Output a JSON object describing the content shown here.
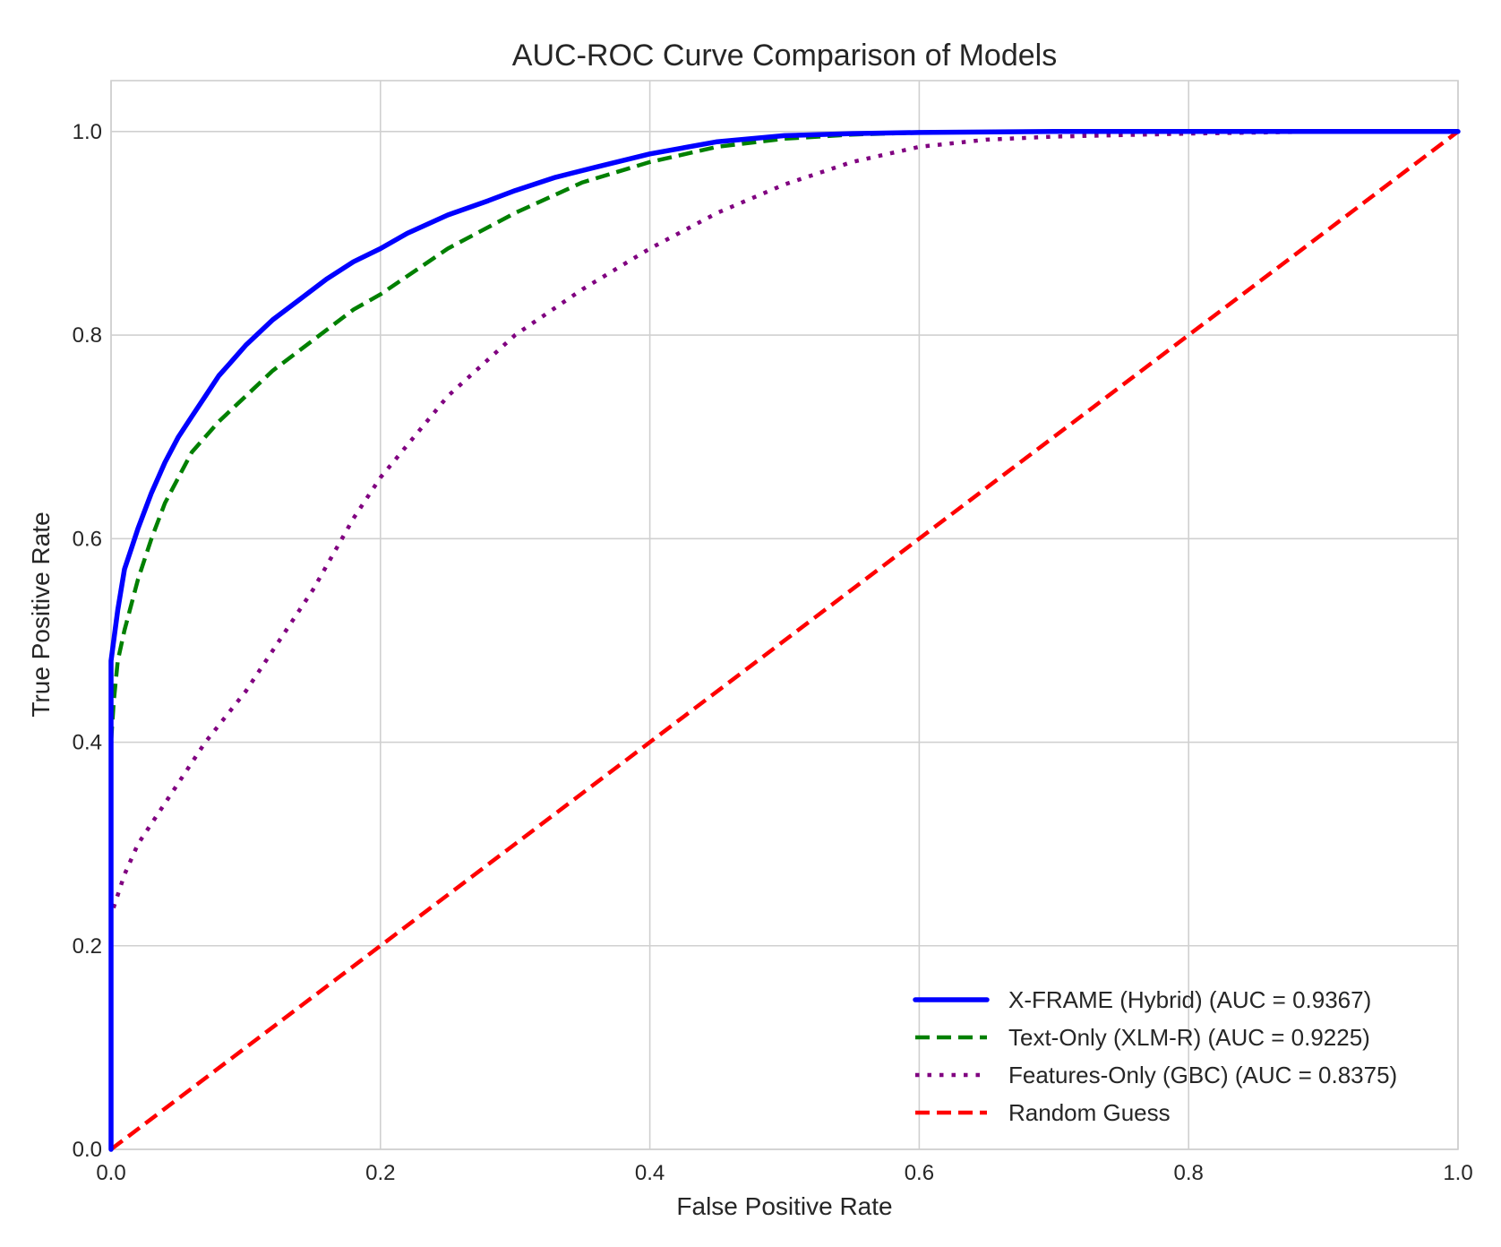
{
  "chart_data": {
    "type": "line",
    "title": "AUC-ROC Curve Comparison of Models",
    "xlabel": "False Positive Rate",
    "ylabel": "True Positive Rate",
    "xlim": [
      0.0,
      1.0
    ],
    "ylim": [
      0.0,
      1.05
    ],
    "x_ticks": [
      "0.0",
      "0.2",
      "0.4",
      "0.6",
      "0.8",
      "1.0"
    ],
    "y_ticks": [
      "0.0",
      "0.2",
      "0.4",
      "0.6",
      "0.8",
      "1.0"
    ],
    "grid": true,
    "legend_position": "lower-right",
    "series": [
      {
        "name": "X-FRAME (Hybrid) (AUC = 0.9367)",
        "color": "#0000ff",
        "style": "solid",
        "x": [
          0.0,
          0.0,
          0.002,
          0.005,
          0.01,
          0.015,
          0.02,
          0.03,
          0.04,
          0.05,
          0.06,
          0.07,
          0.08,
          0.09,
          0.1,
          0.12,
          0.14,
          0.16,
          0.18,
          0.2,
          0.22,
          0.25,
          0.28,
          0.3,
          0.33,
          0.36,
          0.4,
          0.45,
          0.5,
          0.55,
          0.6,
          0.7,
          0.8,
          0.9,
          1.0
        ],
        "y": [
          0.0,
          0.48,
          0.5,
          0.53,
          0.57,
          0.59,
          0.61,
          0.645,
          0.675,
          0.7,
          0.72,
          0.74,
          0.76,
          0.775,
          0.79,
          0.815,
          0.835,
          0.855,
          0.872,
          0.885,
          0.9,
          0.918,
          0.932,
          0.942,
          0.955,
          0.965,
          0.978,
          0.99,
          0.996,
          0.998,
          0.999,
          1.0,
          1.0,
          1.0,
          1.0
        ]
      },
      {
        "name": "Text-Only (XLM-R) (AUC = 0.9225)",
        "color": "#008000",
        "style": "dashed",
        "x": [
          0.0,
          0.0,
          0.002,
          0.005,
          0.01,
          0.02,
          0.03,
          0.04,
          0.05,
          0.06,
          0.08,
          0.1,
          0.12,
          0.15,
          0.18,
          0.2,
          0.25,
          0.3,
          0.35,
          0.4,
          0.45,
          0.5,
          0.55,
          0.6,
          0.7,
          0.8,
          0.9,
          1.0
        ],
        "y": [
          0.0,
          0.4,
          0.44,
          0.48,
          0.51,
          0.56,
          0.6,
          0.635,
          0.66,
          0.685,
          0.715,
          0.74,
          0.765,
          0.795,
          0.825,
          0.84,
          0.885,
          0.92,
          0.95,
          0.97,
          0.985,
          0.993,
          0.997,
          0.999,
          1.0,
          1.0,
          1.0,
          1.0
        ]
      },
      {
        "name": "Features-Only (GBC) (AUC = 0.8375)",
        "color": "#800080",
        "style": "dotted",
        "x": [
          0.0,
          0.0,
          0.005,
          0.01,
          0.02,
          0.03,
          0.05,
          0.07,
          0.1,
          0.12,
          0.15,
          0.18,
          0.2,
          0.25,
          0.3,
          0.35,
          0.4,
          0.45,
          0.5,
          0.55,
          0.6,
          0.65,
          0.7,
          0.8,
          0.9,
          1.0
        ],
        "y": [
          0.0,
          0.23,
          0.25,
          0.27,
          0.3,
          0.32,
          0.36,
          0.4,
          0.45,
          0.49,
          0.55,
          0.62,
          0.66,
          0.74,
          0.8,
          0.845,
          0.885,
          0.92,
          0.948,
          0.97,
          0.985,
          0.992,
          0.995,
          0.998,
          1.0,
          1.0
        ]
      },
      {
        "name": "Random Guess",
        "color": "#ff0000",
        "style": "dashed",
        "x": [
          0.0,
          1.0
        ],
        "y": [
          0.0,
          1.0
        ]
      }
    ]
  }
}
